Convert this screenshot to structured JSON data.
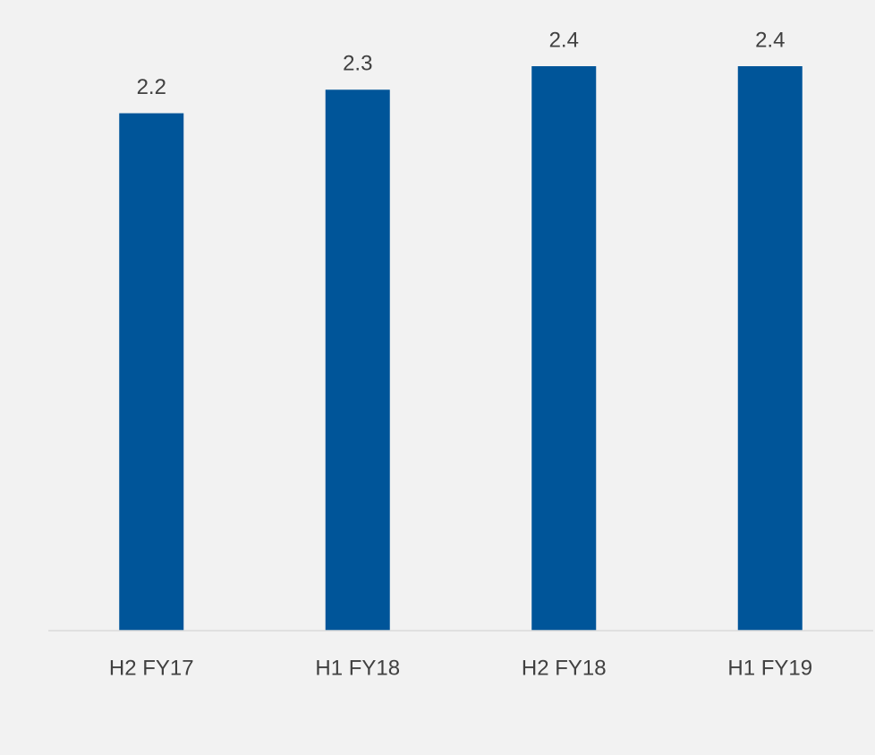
{
  "chart_data": {
    "type": "bar",
    "categories": [
      "H2 FY17",
      "H1 FY18",
      "H2 FY18",
      "H1 FY19"
    ],
    "values": [
      2.2,
      2.3,
      2.4,
      2.4
    ],
    "color": "#005599",
    "ylim": [
      0,
      2.4
    ]
  }
}
